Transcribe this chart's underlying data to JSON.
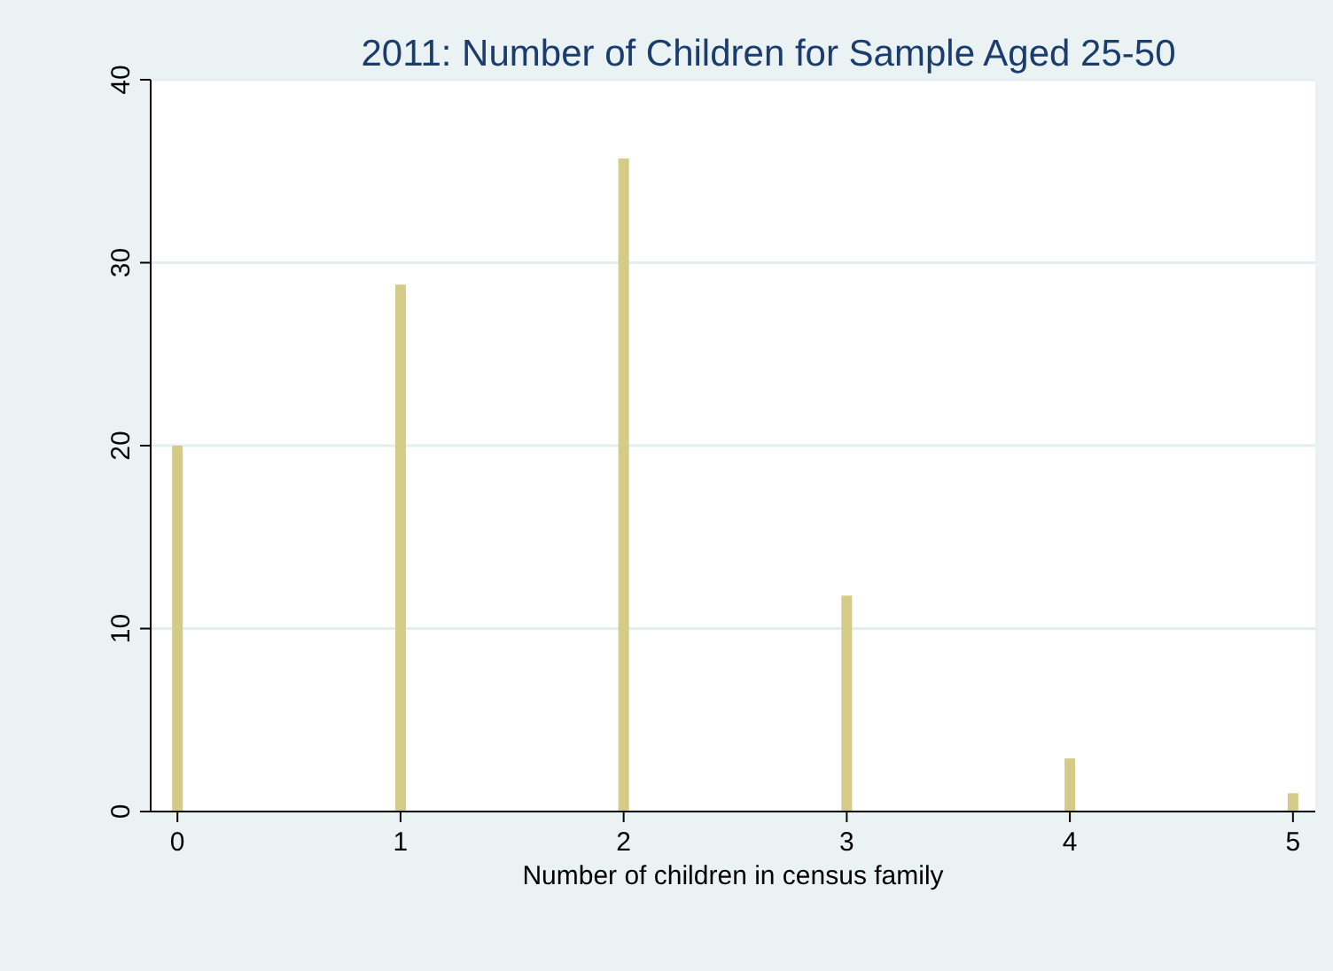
{
  "chart_data": {
    "type": "bar",
    "title": "2011: Number of Children for Sample Aged 25-50",
    "xlabel": "Number of children in census family",
    "x": [
      0,
      1,
      2,
      3,
      4,
      5
    ],
    "values": [
      20,
      28.8,
      35.7,
      11.8,
      2.9,
      1
    ],
    "color": "#d4cb88",
    "xlim": [
      -0.12,
      5.1
    ],
    "xticks": [
      0,
      1,
      2,
      3,
      4,
      5
    ],
    "ylim": [
      0,
      40
    ],
    "yticks": [
      0,
      10,
      20,
      30,
      40
    ],
    "grid": "y"
  }
}
